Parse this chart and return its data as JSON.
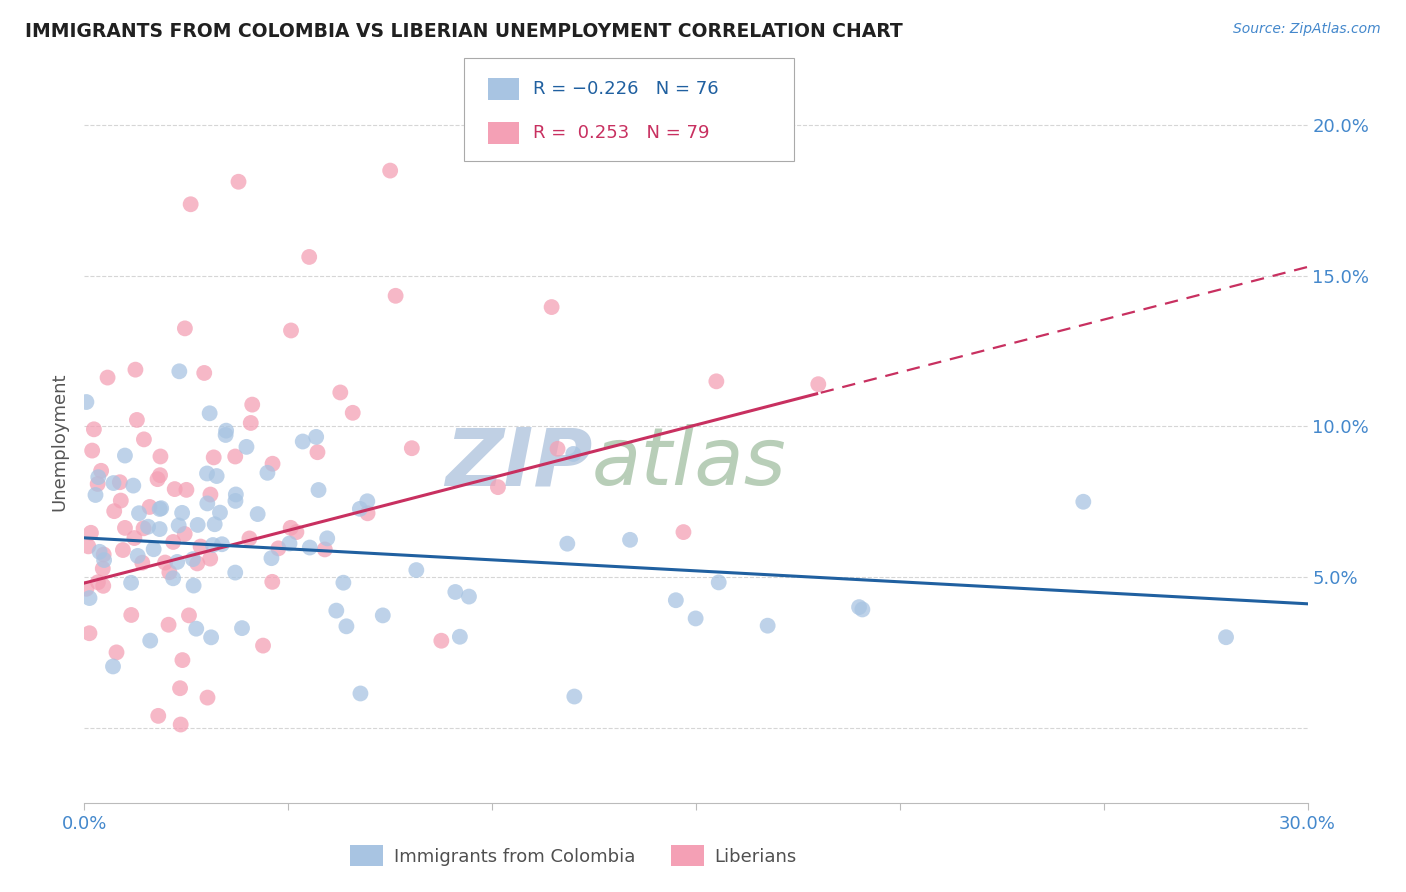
{
  "title": "IMMIGRANTS FROM COLOMBIA VS LIBERIAN UNEMPLOYMENT CORRELATION CHART",
  "source": "Source: ZipAtlas.com",
  "ylabel": "Unemployment",
  "yticks": [
    0.0,
    0.05,
    0.1,
    0.15,
    0.2
  ],
  "ytick_labels": [
    "",
    "5.0%",
    "10.0%",
    "15.0%",
    "20.0%"
  ],
  "xlim": [
    0.0,
    0.3
  ],
  "ylim": [
    -0.025,
    0.215
  ],
  "colombia_R": -0.226,
  "colombia_N": 76,
  "liberia_R": 0.253,
  "liberia_N": 79,
  "colombia_color": "#a8c4e2",
  "liberia_color": "#f4a0b5",
  "colombia_line_color": "#2060a0",
  "liberia_line_color": "#c83060",
  "watermark_zip": "ZIP",
  "watermark_atlas": "atlas",
  "watermark_color": "#ccdaec",
  "watermark_color2": "#c8d8c8",
  "background_color": "#ffffff",
  "grid_color": "#cccccc",
  "title_color": "#202020",
  "axis_label_color": "#4488cc",
  "legend_text_col_color": "#2060a0",
  "legend_text_lib_color": "#c83060"
}
